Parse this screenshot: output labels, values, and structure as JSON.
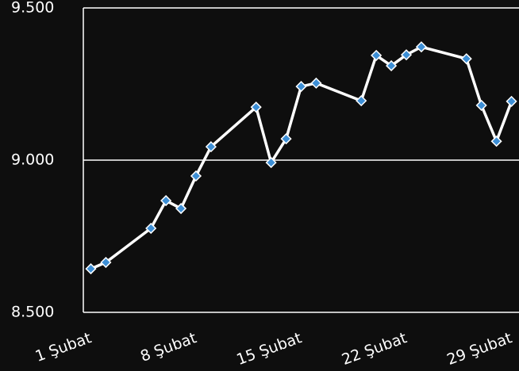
{
  "chart_data": {
    "type": "line",
    "x": [
      1,
      2,
      5,
      6,
      7,
      8,
      9,
      12,
      13,
      14,
      15,
      16,
      19,
      20,
      21,
      22,
      23,
      26,
      27,
      28,
      29
    ],
    "series": [
      {
        "color": "#ffffff",
        "marker_color": "#3d8fd6",
        "values": [
          8643,
          8664,
          8776,
          8867,
          8841,
          8948,
          9044,
          9174,
          8992,
          9070,
          9242,
          9253,
          9195,
          9344,
          9310,
          9346,
          9372,
          9333,
          9180,
          9062,
          9193
        ]
      }
    ],
    "xlim": [
      0.5,
      29.5
    ],
    "xticks": [
      {
        "value": 1,
        "label": "1 Şubat"
      },
      {
        "value": 8,
        "label": "8 Şubat"
      },
      {
        "value": 15,
        "label": "15 Şubat"
      },
      {
        "value": 22,
        "label": "22 Şubat"
      },
      {
        "value": 29,
        "label": "29 Şubat"
      }
    ],
    "ylim": [
      8500,
      9500
    ],
    "yticks": [
      {
        "value": 8500,
        "label": "8.500"
      },
      {
        "value": 9000,
        "label": "9.000"
      },
      {
        "value": 9500,
        "label": "9.500"
      }
    ],
    "grid": true
  }
}
